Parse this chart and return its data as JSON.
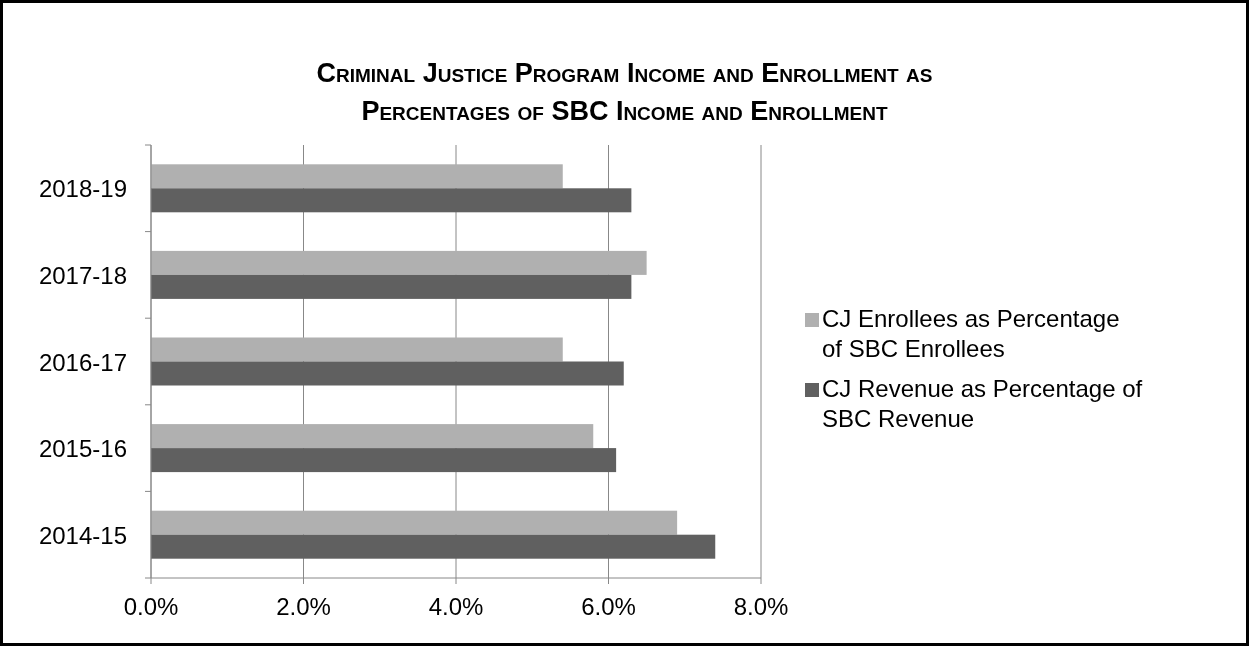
{
  "chart_data": {
    "type": "bar",
    "orientation": "horizontal",
    "title": "Criminal Justice Program Income and Enrollment as Percentages of SBC Income and Enrollment",
    "categories": [
      "2018-19",
      "2017-18",
      "2016-17",
      "2015-16",
      "2014-15"
    ],
    "series": [
      {
        "name": "CJ Enrollees as Percentage of SBC Enrollees",
        "color": "#b0b0b0",
        "values": [
          5.4,
          6.5,
          5.4,
          5.8,
          6.9
        ]
      },
      {
        "name": "CJ Revenue as Percentage of SBC Revenue",
        "color": "#606060",
        "values": [
          6.3,
          6.3,
          6.2,
          6.1,
          7.4
        ]
      }
    ],
    "xlim": [
      0,
      8
    ],
    "xticks": [
      {
        "value": 0,
        "label": "0.0%"
      },
      {
        "value": 2,
        "label": "2.0%"
      },
      {
        "value": 4,
        "label": "4.0%"
      },
      {
        "value": 6,
        "label": "6.0%"
      },
      {
        "value": 8,
        "label": "8.0%"
      }
    ],
    "grid": "x",
    "legend": "right"
  }
}
